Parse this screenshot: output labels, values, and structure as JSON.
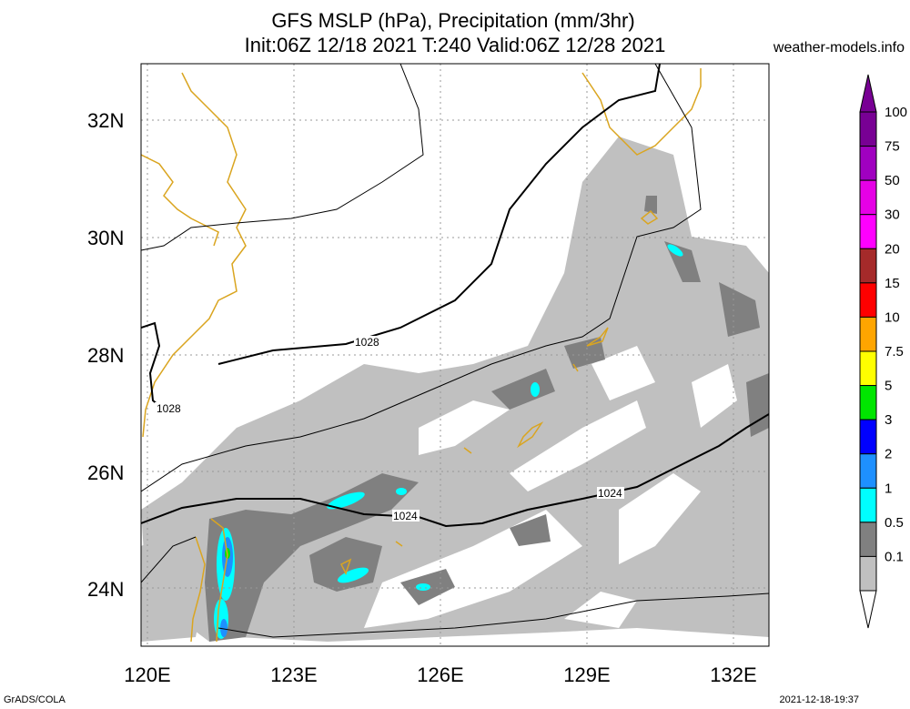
{
  "header": {
    "title_line1": "GFS MSLP (hPa), Precipitation (mm/3hr)",
    "title_line2": "Init:06Z 12/18 2021 T:240 Valid:06Z 12/28 2021",
    "brand": "weather-models.info"
  },
  "footer": {
    "left": "GrADS/COLA",
    "right": "2021-12-18-19:37"
  },
  "map": {
    "lat_labels": [
      "32N",
      "30N",
      "28N",
      "26N",
      "24N"
    ],
    "lon_labels": [
      "120E",
      "123E",
      "126E",
      "129E",
      "132E"
    ],
    "isobar_labels": [
      "1028",
      "1028",
      "1024",
      "1024"
    ]
  },
  "legend": {
    "labels": [
      "100",
      "75",
      "50",
      "30",
      "20",
      "15",
      "10",
      "7.5",
      "5",
      "3",
      "2",
      "1",
      "0.5",
      "0.1"
    ],
    "colors": [
      "#780094",
      "#a000c0",
      "#e600e6",
      "#ff00ff",
      "#a52a2a",
      "#ff0000",
      "#ffa500",
      "#ffff00",
      "#00e600",
      "#0000ff",
      "#1e90ff",
      "#00ffff",
      "#808080",
      "#c0c0c0"
    ]
  },
  "colors": {
    "coastline": "#daa520",
    "light_precip": "#c0c0c0",
    "mid_precip": "#808080",
    "cyan_precip": "#00ffff",
    "blue_precip": "#1e90ff"
  }
}
